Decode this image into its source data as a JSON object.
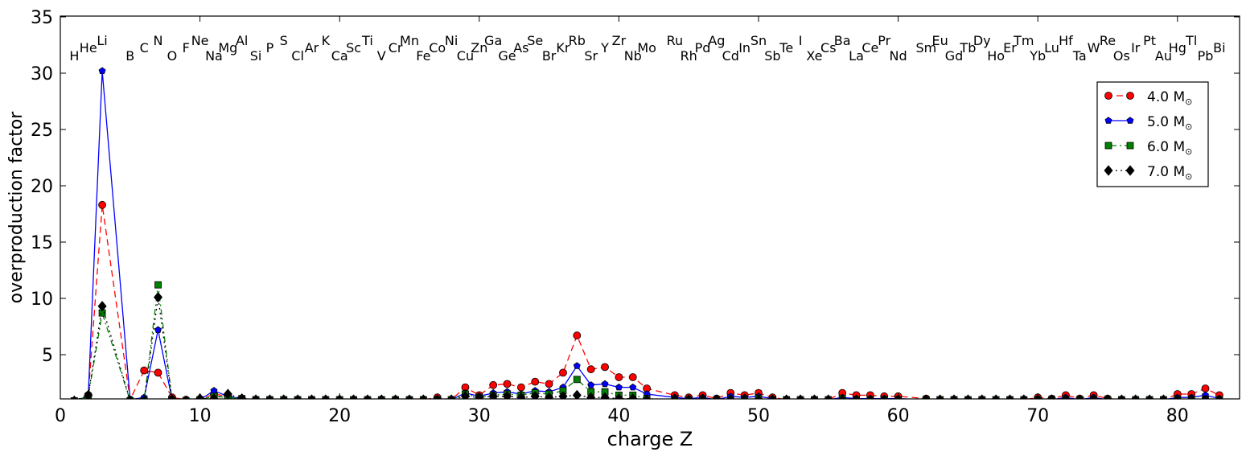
{
  "chart_data": {
    "type": "line",
    "xlabel": "charge Z",
    "ylabel": "overproduction factor",
    "xlim": [
      0,
      83.5
    ],
    "ylim": [
      0.8,
      35
    ],
    "xticks": [
      0,
      10,
      20,
      30,
      40,
      50,
      60,
      70,
      80
    ],
    "yticks": [
      5,
      10,
      15,
      20,
      25,
      30,
      35
    ],
    "legend_position": "upper-right",
    "elements": [
      {
        "z": 1,
        "s": "H",
        "row": 1
      },
      {
        "z": 2,
        "s": "He",
        "row": 0
      },
      {
        "z": 3,
        "s": "Li",
        "row": -1
      },
      {
        "z": 5,
        "s": "B",
        "row": 1
      },
      {
        "z": 6,
        "s": "C",
        "row": 0
      },
      {
        "z": 7,
        "s": "N",
        "row": -1
      },
      {
        "z": 8,
        "s": "O",
        "row": 1
      },
      {
        "z": 9,
        "s": "F",
        "row": 0
      },
      {
        "z": 10,
        "s": "Ne",
        "row": -1
      },
      {
        "z": 11,
        "s": "Na",
        "row": 1
      },
      {
        "z": 12,
        "s": "Mg",
        "row": 0
      },
      {
        "z": 13,
        "s": "Al",
        "row": -1
      },
      {
        "z": 14,
        "s": "Si",
        "row": 1
      },
      {
        "z": 15,
        "s": "P",
        "row": 0
      },
      {
        "z": 16,
        "s": "S",
        "row": -1
      },
      {
        "z": 17,
        "s": "Cl",
        "row": 1
      },
      {
        "z": 18,
        "s": "Ar",
        "row": 0
      },
      {
        "z": 19,
        "s": "K",
        "row": -1
      },
      {
        "z": 20,
        "s": "Ca",
        "row": 1
      },
      {
        "z": 21,
        "s": "Sc",
        "row": 0
      },
      {
        "z": 22,
        "s": "Ti",
        "row": -1
      },
      {
        "z": 23,
        "s": "V",
        "row": 1
      },
      {
        "z": 24,
        "s": "Cr",
        "row": 0
      },
      {
        "z": 25,
        "s": "Mn",
        "row": -1
      },
      {
        "z": 26,
        "s": "Fe",
        "row": 1
      },
      {
        "z": 27,
        "s": "Co",
        "row": 0
      },
      {
        "z": 28,
        "s": "Ni",
        "row": -1
      },
      {
        "z": 29,
        "s": "Cu",
        "row": 1
      },
      {
        "z": 30,
        "s": "Zn",
        "row": 0
      },
      {
        "z": 31,
        "s": "Ga",
        "row": -1
      },
      {
        "z": 32,
        "s": "Ge",
        "row": 1
      },
      {
        "z": 33,
        "s": "As",
        "row": 0
      },
      {
        "z": 34,
        "s": "Se",
        "row": -1
      },
      {
        "z": 35,
        "s": "Br",
        "row": 1
      },
      {
        "z": 36,
        "s": "Kr",
        "row": 0
      },
      {
        "z": 37,
        "s": "Rb",
        "row": -1
      },
      {
        "z": 38,
        "s": "Sr",
        "row": 1
      },
      {
        "z": 39,
        "s": "Y",
        "row": 0
      },
      {
        "z": 40,
        "s": "Zr",
        "row": -1
      },
      {
        "z": 41,
        "s": "Nb",
        "row": 1
      },
      {
        "z": 42,
        "s": "Mo",
        "row": 0
      },
      {
        "z": 44,
        "s": "Ru",
        "row": -1
      },
      {
        "z": 45,
        "s": "Rh",
        "row": 1
      },
      {
        "z": 46,
        "s": "Pd",
        "row": 0
      },
      {
        "z": 47,
        "s": "Ag",
        "row": -1
      },
      {
        "z": 48,
        "s": "Cd",
        "row": 1
      },
      {
        "z": 49,
        "s": "In",
        "row": 0
      },
      {
        "z": 50,
        "s": "Sn",
        "row": -1
      },
      {
        "z": 51,
        "s": "Sb",
        "row": 1
      },
      {
        "z": 52,
        "s": "Te",
        "row": 0
      },
      {
        "z": 53,
        "s": "I",
        "row": -1
      },
      {
        "z": 54,
        "s": "Xe",
        "row": 1
      },
      {
        "z": 55,
        "s": "Cs",
        "row": 0
      },
      {
        "z": 56,
        "s": "Ba",
        "row": -1
      },
      {
        "z": 57,
        "s": "La",
        "row": 1
      },
      {
        "z": 58,
        "s": "Ce",
        "row": 0
      },
      {
        "z": 59,
        "s": "Pr",
        "row": -1
      },
      {
        "z": 60,
        "s": "Nd",
        "row": 1
      },
      {
        "z": 62,
        "s": "Sm",
        "row": 0
      },
      {
        "z": 63,
        "s": "Eu",
        "row": -1
      },
      {
        "z": 64,
        "s": "Gd",
        "row": 1
      },
      {
        "z": 65,
        "s": "Tb",
        "row": 0
      },
      {
        "z": 66,
        "s": "Dy",
        "row": -1
      },
      {
        "z": 67,
        "s": "Ho",
        "row": 1
      },
      {
        "z": 68,
        "s": "Er",
        "row": 0
      },
      {
        "z": 69,
        "s": "Tm",
        "row": -1
      },
      {
        "z": 70,
        "s": "Yb",
        "row": 1
      },
      {
        "z": 71,
        "s": "Lu",
        "row": 0
      },
      {
        "z": 72,
        "s": "Hf",
        "row": -1
      },
      {
        "z": 73,
        "s": "Ta",
        "row": 1
      },
      {
        "z": 74,
        "s": "W",
        "row": 0
      },
      {
        "z": 75,
        "s": "Re",
        "row": -1
      },
      {
        "z": 76,
        "s": "Os",
        "row": 1
      },
      {
        "z": 77,
        "s": "Ir",
        "row": 0
      },
      {
        "z": 78,
        "s": "Pt",
        "row": -1
      },
      {
        "z": 79,
        "s": "Au",
        "row": 1
      },
      {
        "z": 80,
        "s": "Hg",
        "row": 0
      },
      {
        "z": 81,
        "s": "Tl",
        "row": -1
      },
      {
        "z": 82,
        "s": "Pb",
        "row": 1
      },
      {
        "z": 83,
        "s": "Bi",
        "row": 0
      }
    ],
    "series": [
      {
        "name": "4.0 M",
        "color": "#ff0000",
        "marker": "circle",
        "dash": "8,5",
        "x": [
          1,
          2,
          3,
          5,
          6,
          7,
          8,
          9,
          10,
          11,
          12,
          13,
          14,
          15,
          16,
          17,
          18,
          19,
          20,
          21,
          22,
          23,
          24,
          25,
          26,
          27,
          28,
          29,
          30,
          31,
          32,
          33,
          34,
          35,
          36,
          37,
          38,
          39,
          40,
          41,
          42,
          44,
          45,
          46,
          47,
          48,
          49,
          50,
          51,
          52,
          53,
          54,
          55,
          56,
          57,
          58,
          59,
          60,
          62,
          63,
          64,
          65,
          66,
          67,
          68,
          69,
          70,
          71,
          72,
          73,
          74,
          75,
          76,
          77,
          78,
          79,
          80,
          81,
          82,
          83
        ],
        "y": [
          0.9,
          1.4,
          18.3,
          1.0,
          3.6,
          3.4,
          1.2,
          1.0,
          1.0,
          1.5,
          1.3,
          1.1,
          1.0,
          1.0,
          1.0,
          1.0,
          1.0,
          1.0,
          1.0,
          1.0,
          1.0,
          1.0,
          1.0,
          1.0,
          1.0,
          1.2,
          1.0,
          2.1,
          1.4,
          2.3,
          2.4,
          2.1,
          2.6,
          2.4,
          3.4,
          6.7,
          3.7,
          3.9,
          3.0,
          3.0,
          2.0,
          1.4,
          1.2,
          1.4,
          1.1,
          1.6,
          1.4,
          1.6,
          1.2,
          1.0,
          1.0,
          1.0,
          1.0,
          1.6,
          1.4,
          1.4,
          1.3,
          1.3,
          1.1,
          1.0,
          1.0,
          1.0,
          1.0,
          1.0,
          1.0,
          1.0,
          1.2,
          1.1,
          1.4,
          1.1,
          1.4,
          1.1,
          1.0,
          1.0,
          1.0,
          1.0,
          1.5,
          1.5,
          2.0,
          1.4
        ]
      },
      {
        "name": "5.0 M",
        "color": "#0000ff",
        "marker": "pentagon",
        "dash": "",
        "x": [
          1,
          2,
          3,
          5,
          6,
          7,
          8,
          9,
          10,
          11,
          12,
          13,
          14,
          15,
          16,
          17,
          18,
          19,
          20,
          21,
          22,
          23,
          24,
          25,
          26,
          27,
          28,
          29,
          30,
          31,
          32,
          33,
          34,
          35,
          36,
          37,
          38,
          39,
          40,
          41,
          42,
          44,
          45,
          46,
          47,
          48,
          49,
          50,
          51,
          52,
          53,
          54,
          55,
          56,
          57,
          58,
          59,
          60,
          62,
          63,
          64,
          65,
          66,
          67,
          68,
          69,
          70,
          71,
          72,
          73,
          74,
          75,
          76,
          77,
          78,
          79,
          80,
          81,
          82,
          83
        ],
        "y": [
          0.9,
          1.3,
          30.2,
          1.0,
          1.2,
          7.2,
          1.0,
          0.9,
          1.0,
          1.8,
          1.3,
          1.1,
          1.0,
          1.0,
          1.0,
          1.0,
          1.0,
          1.0,
          1.0,
          1.0,
          1.0,
          1.0,
          1.0,
          1.0,
          1.0,
          1.1,
          1.0,
          1.6,
          1.3,
          1.6,
          1.7,
          1.5,
          1.8,
          1.7,
          2.1,
          4.0,
          2.3,
          2.4,
          2.1,
          2.1,
          1.5,
          1.2,
          1.1,
          1.2,
          1.0,
          1.3,
          1.2,
          1.3,
          1.1,
          1.0,
          1.0,
          1.0,
          1.0,
          1.2,
          1.1,
          1.1,
          1.1,
          1.1,
          1.0,
          1.0,
          1.0,
          1.0,
          1.0,
          1.0,
          1.0,
          1.0,
          1.1,
          1.0,
          1.2,
          1.0,
          1.2,
          1.0,
          1.0,
          1.0,
          1.0,
          1.0,
          1.2,
          1.2,
          1.4,
          1.1
        ]
      },
      {
        "name": "6.0 M",
        "color": "#008000",
        "marker": "square",
        "dash": "2,4,7,4",
        "x": [
          1,
          2,
          3,
          5,
          6,
          7,
          8,
          9,
          10,
          11,
          12,
          13,
          14,
          15,
          16,
          17,
          18,
          19,
          20,
          21,
          22,
          23,
          24,
          25,
          26,
          27,
          28,
          29,
          30,
          31,
          32,
          33,
          34,
          35,
          36,
          37,
          38,
          39,
          40,
          41,
          42,
          44,
          45,
          46,
          47,
          48,
          49,
          50,
          51,
          52,
          53,
          54,
          55,
          56,
          57,
          58,
          59,
          60,
          62,
          63,
          64,
          65,
          66,
          67,
          68,
          69,
          70,
          71,
          72,
          73,
          74,
          75,
          76,
          77,
          78,
          79,
          80,
          81,
          82,
          83
        ],
        "y": [
          0.9,
          1.3,
          8.7,
          0.9,
          0.9,
          11.2,
          1.0,
          0.9,
          1.0,
          1.3,
          1.2,
          1.1,
          1.0,
          1.0,
          1.0,
          1.0,
          1.0,
          1.0,
          1.0,
          1.0,
          1.0,
          1.0,
          1.0,
          1.0,
          1.0,
          1.0,
          1.0,
          1.5,
          1.2,
          1.4,
          1.5,
          1.4,
          1.6,
          1.5,
          1.8,
          2.8,
          1.7,
          1.7,
          1.4,
          1.4,
          1.1,
          1.0,
          1.0,
          1.0,
          1.0,
          1.0,
          1.0,
          1.1,
          1.0,
          1.0,
          1.0,
          1.0,
          1.0,
          1.1,
          1.0,
          1.0,
          1.0,
          1.0,
          1.0,
          1.0,
          1.0,
          1.0,
          1.0,
          1.0,
          1.0,
          1.0,
          1.0,
          1.0,
          1.0,
          1.0,
          1.0,
          1.0,
          1.0,
          1.0,
          1.0,
          1.0,
          1.0,
          1.0,
          1.0,
          1.0
        ]
      },
      {
        "name": "7.0 M",
        "color": "#000000",
        "marker": "diamond",
        "dash": "2,4",
        "x": [
          1,
          2,
          3,
          5,
          6,
          7,
          8,
          9,
          10,
          11,
          12,
          13,
          14,
          15,
          16,
          17,
          18,
          19,
          20,
          21,
          22,
          23,
          24,
          25,
          26,
          27,
          28,
          29,
          30,
          31,
          32,
          33,
          34,
          35,
          36,
          37,
          38,
          39,
          40,
          41,
          42,
          44,
          45,
          46,
          47,
          48,
          49,
          50,
          51,
          52,
          53,
          54,
          55,
          56,
          57,
          58,
          59,
          60,
          62,
          63,
          64,
          65,
          66,
          67,
          68,
          69,
          70,
          71,
          72,
          73,
          74,
          75,
          76,
          77,
          78,
          79,
          80,
          81,
          82,
          83
        ],
        "y": [
          0.9,
          1.4,
          9.3,
          0.9,
          0.9,
          10.1,
          1.0,
          0.9,
          1.1,
          1.1,
          1.5,
          1.1,
          1.0,
          1.0,
          1.0,
          1.0,
          1.0,
          1.0,
          1.0,
          1.0,
          1.0,
          1.0,
          1.0,
          1.0,
          1.0,
          1.0,
          1.0,
          1.3,
          1.2,
          1.3,
          1.3,
          1.2,
          1.3,
          1.2,
          1.3,
          1.4,
          1.2,
          1.2,
          1.1,
          1.1,
          1.0,
          1.0,
          1.0,
          1.0,
          1.0,
          1.0,
          1.0,
          1.0,
          1.0,
          1.0,
          1.0,
          1.0,
          1.0,
          1.0,
          1.0,
          1.0,
          1.0,
          1.0,
          1.0,
          1.0,
          1.0,
          1.0,
          1.0,
          1.0,
          1.0,
          1.0,
          1.0,
          1.0,
          1.0,
          1.0,
          1.0,
          1.0,
          1.0,
          1.0,
          1.0,
          1.0,
          1.0,
          1.0,
          1.0,
          1.0
        ]
      }
    ],
    "legend_subscript": "⊙"
  }
}
